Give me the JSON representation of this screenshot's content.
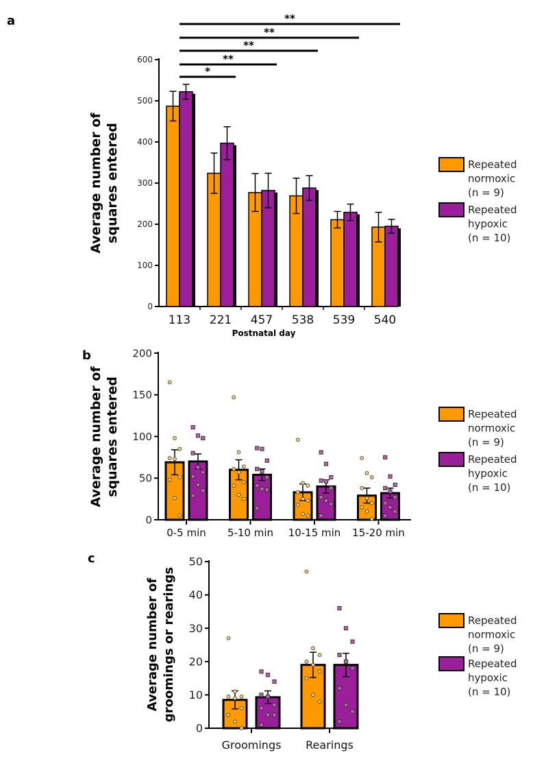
{
  "colors": {
    "normoxic": "#FF9900",
    "hypoxic": "#9B1F9B",
    "axis": "#000000"
  },
  "legend": [
    {
      "lines": [
        "Repeated",
        "normoxic",
        "(n = 9)"
      ],
      "color_key": "normoxic"
    },
    {
      "lines": [
        "Repeated",
        "hypoxic",
        "(n = 10)"
      ],
      "color_key": "hypoxic"
    }
  ],
  "chart_data": [
    {
      "panel": "a",
      "type": "bar",
      "ylabel": [
        "Average number of",
        "squares entered"
      ],
      "xlabel": "Postnatal day",
      "ylim": [
        0,
        600
      ],
      "yticks": [
        0,
        100,
        200,
        300,
        400,
        500,
        600
      ],
      "categories": [
        "113",
        "221",
        "457",
        "538",
        "539",
        "540"
      ],
      "series": [
        {
          "name": "Repeated normoxic (n = 9)",
          "values": [
            487,
            324,
            277,
            269,
            211,
            193
          ],
          "errors": [
            36,
            49,
            46,
            43,
            20,
            36
          ]
        },
        {
          "name": "Repeated hypoxic (n = 10)",
          "values": [
            522,
            397,
            282,
            288,
            229,
            195
          ],
          "errors": [
            18,
            40,
            42,
            30,
            20,
            17
          ]
        }
      ],
      "significance": [
        {
          "from": "113",
          "to": "221",
          "label": "*"
        },
        {
          "from": "113",
          "to": "457",
          "label": "**"
        },
        {
          "from": "113",
          "to": "538",
          "label": "**"
        },
        {
          "from": "113",
          "to": "539",
          "label": "**"
        },
        {
          "from": "113",
          "to": "540",
          "label": "**"
        }
      ]
    },
    {
      "panel": "b",
      "type": "bar",
      "ylabel": [
        "Average number of",
        "squares entered"
      ],
      "xlabel": "",
      "ylim": [
        0,
        200
      ],
      "yticks": [
        0,
        50,
        100,
        150,
        200
      ],
      "categories": [
        "0-5 min",
        "5-10 min",
        "10-15 min",
        "15-20 min"
      ],
      "series": [
        {
          "name": "Repeated normoxic (n = 9)",
          "values": [
            69,
            60,
            33,
            29
          ],
          "errors": [
            15,
            12,
            10,
            9
          ],
          "points": [
            [
              165,
              98,
              85,
              74,
              73,
              51,
              48,
              26,
              5
            ],
            [
              147,
              81,
              64,
              61,
              57,
              45,
              41,
              30,
              25
            ],
            [
              96,
              44,
              41,
              33,
              25,
              23,
              18,
              7,
              5
            ],
            [
              74,
              56,
              51,
              38,
              26,
              20,
              15,
              10,
              1
            ]
          ]
        },
        {
          "name": "Repeated hypoxic (n = 10)",
          "values": [
            70,
            54,
            40,
            32
          ],
          "errors": [
            9,
            7,
            8,
            6
          ],
          "points": [
            [
              111,
              101,
              98,
              80,
              63,
              57,
              52,
              42,
              35,
              29
            ],
            [
              86,
              85,
              71,
              61,
              58,
              51,
              41,
              37,
              36,
              14
            ],
            [
              81,
              67,
              51,
              47,
              46,
              38,
              27,
              23,
              19,
              5
            ],
            [
              75,
              52,
              42,
              38,
              34,
              27,
              20,
              15,
              10,
              5
            ]
          ]
        }
      ]
    },
    {
      "panel": "c",
      "type": "bar",
      "ylabel": [
        "Average number of",
        "groomings or rearings"
      ],
      "xlabel": "",
      "ylim": [
        0,
        50
      ],
      "yticks": [
        0,
        10,
        20,
        30,
        40,
        50
      ],
      "categories": [
        "Groomings",
        "Rearings"
      ],
      "series": [
        {
          "name": "Repeated normoxic (n = 9)",
          "values": [
            8.5,
            19
          ],
          "errors": [
            2.7,
            3.8
          ],
          "points": [
            [
              27,
              11,
              9.5,
              9.5,
              9,
              6,
              4,
              2,
              0
            ],
            [
              47,
              24,
              22,
              20,
              19,
              17,
              15,
              10,
              8
            ]
          ]
        },
        {
          "name": "Repeated hypoxic (n = 10)",
          "values": [
            9.3,
            19
          ],
          "errors": [
            1.9,
            3.5
          ],
          "points": [
            [
              17,
              16,
              14,
              10,
              9.5,
              7,
              6,
              4,
              4,
              1
            ],
            [
              36,
              30,
              26,
              22,
              20,
              18,
              12,
              7,
              5,
              2
            ]
          ]
        }
      ]
    }
  ]
}
